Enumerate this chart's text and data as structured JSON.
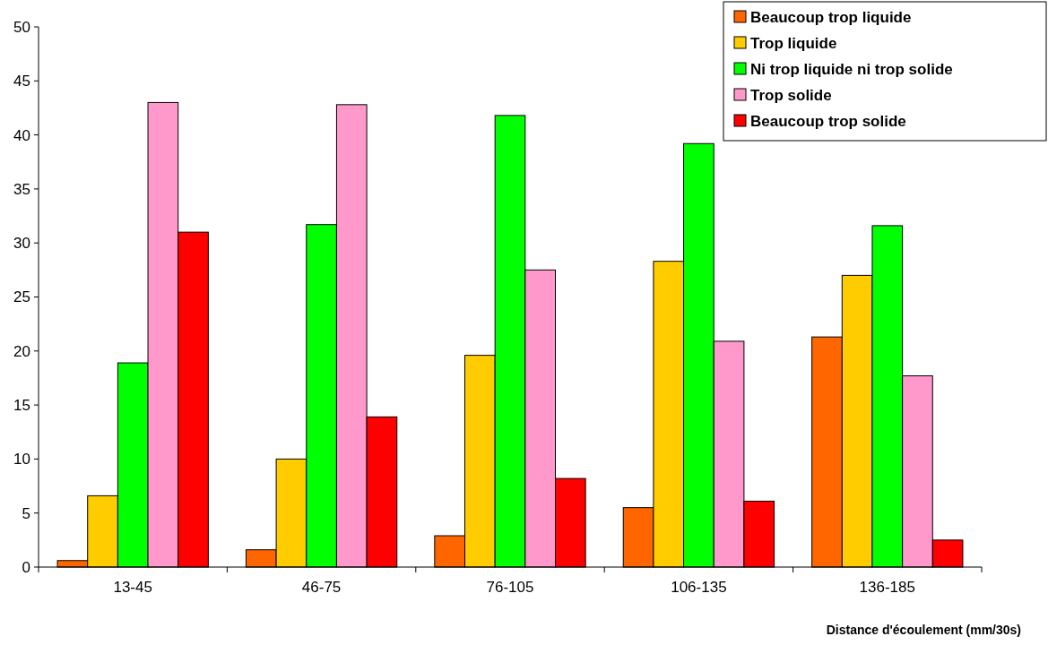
{
  "chart_data": {
    "type": "bar",
    "xlabel": "Distance d'écoulement (mm/30s)",
    "categories": [
      "13-45",
      "46-75",
      "76-105",
      "106-135",
      "136-185"
    ],
    "series": [
      {
        "name": "Beaucoup trop liquide",
        "color": "#ff6600",
        "values": [
          0.6,
          1.6,
          2.9,
          5.5,
          21.3
        ]
      },
      {
        "name": "Trop liquide",
        "color": "#ffcc00",
        "values": [
          6.6,
          10,
          19.6,
          28.3,
          27
        ]
      },
      {
        "name": "Ni trop liquide ni trop solide",
        "color": "#00ff00",
        "values": [
          18.9,
          31.7,
          41.8,
          39.2,
          31.6
        ]
      },
      {
        "name": "Trop solide",
        "color": "#ff99cc",
        "values": [
          43,
          42.8,
          27.5,
          20.9,
          17.7
        ]
      },
      {
        "name": "Beaucoup trop solide",
        "color": "#ff0000",
        "values": [
          31,
          13.9,
          8.2,
          6.1,
          2.5
        ]
      }
    ],
    "ylim": [
      0,
      50
    ],
    "yticks": [
      0,
      5,
      10,
      15,
      20,
      25,
      30,
      35,
      40,
      45,
      50
    ],
    "grid": false,
    "legend": "top right"
  }
}
